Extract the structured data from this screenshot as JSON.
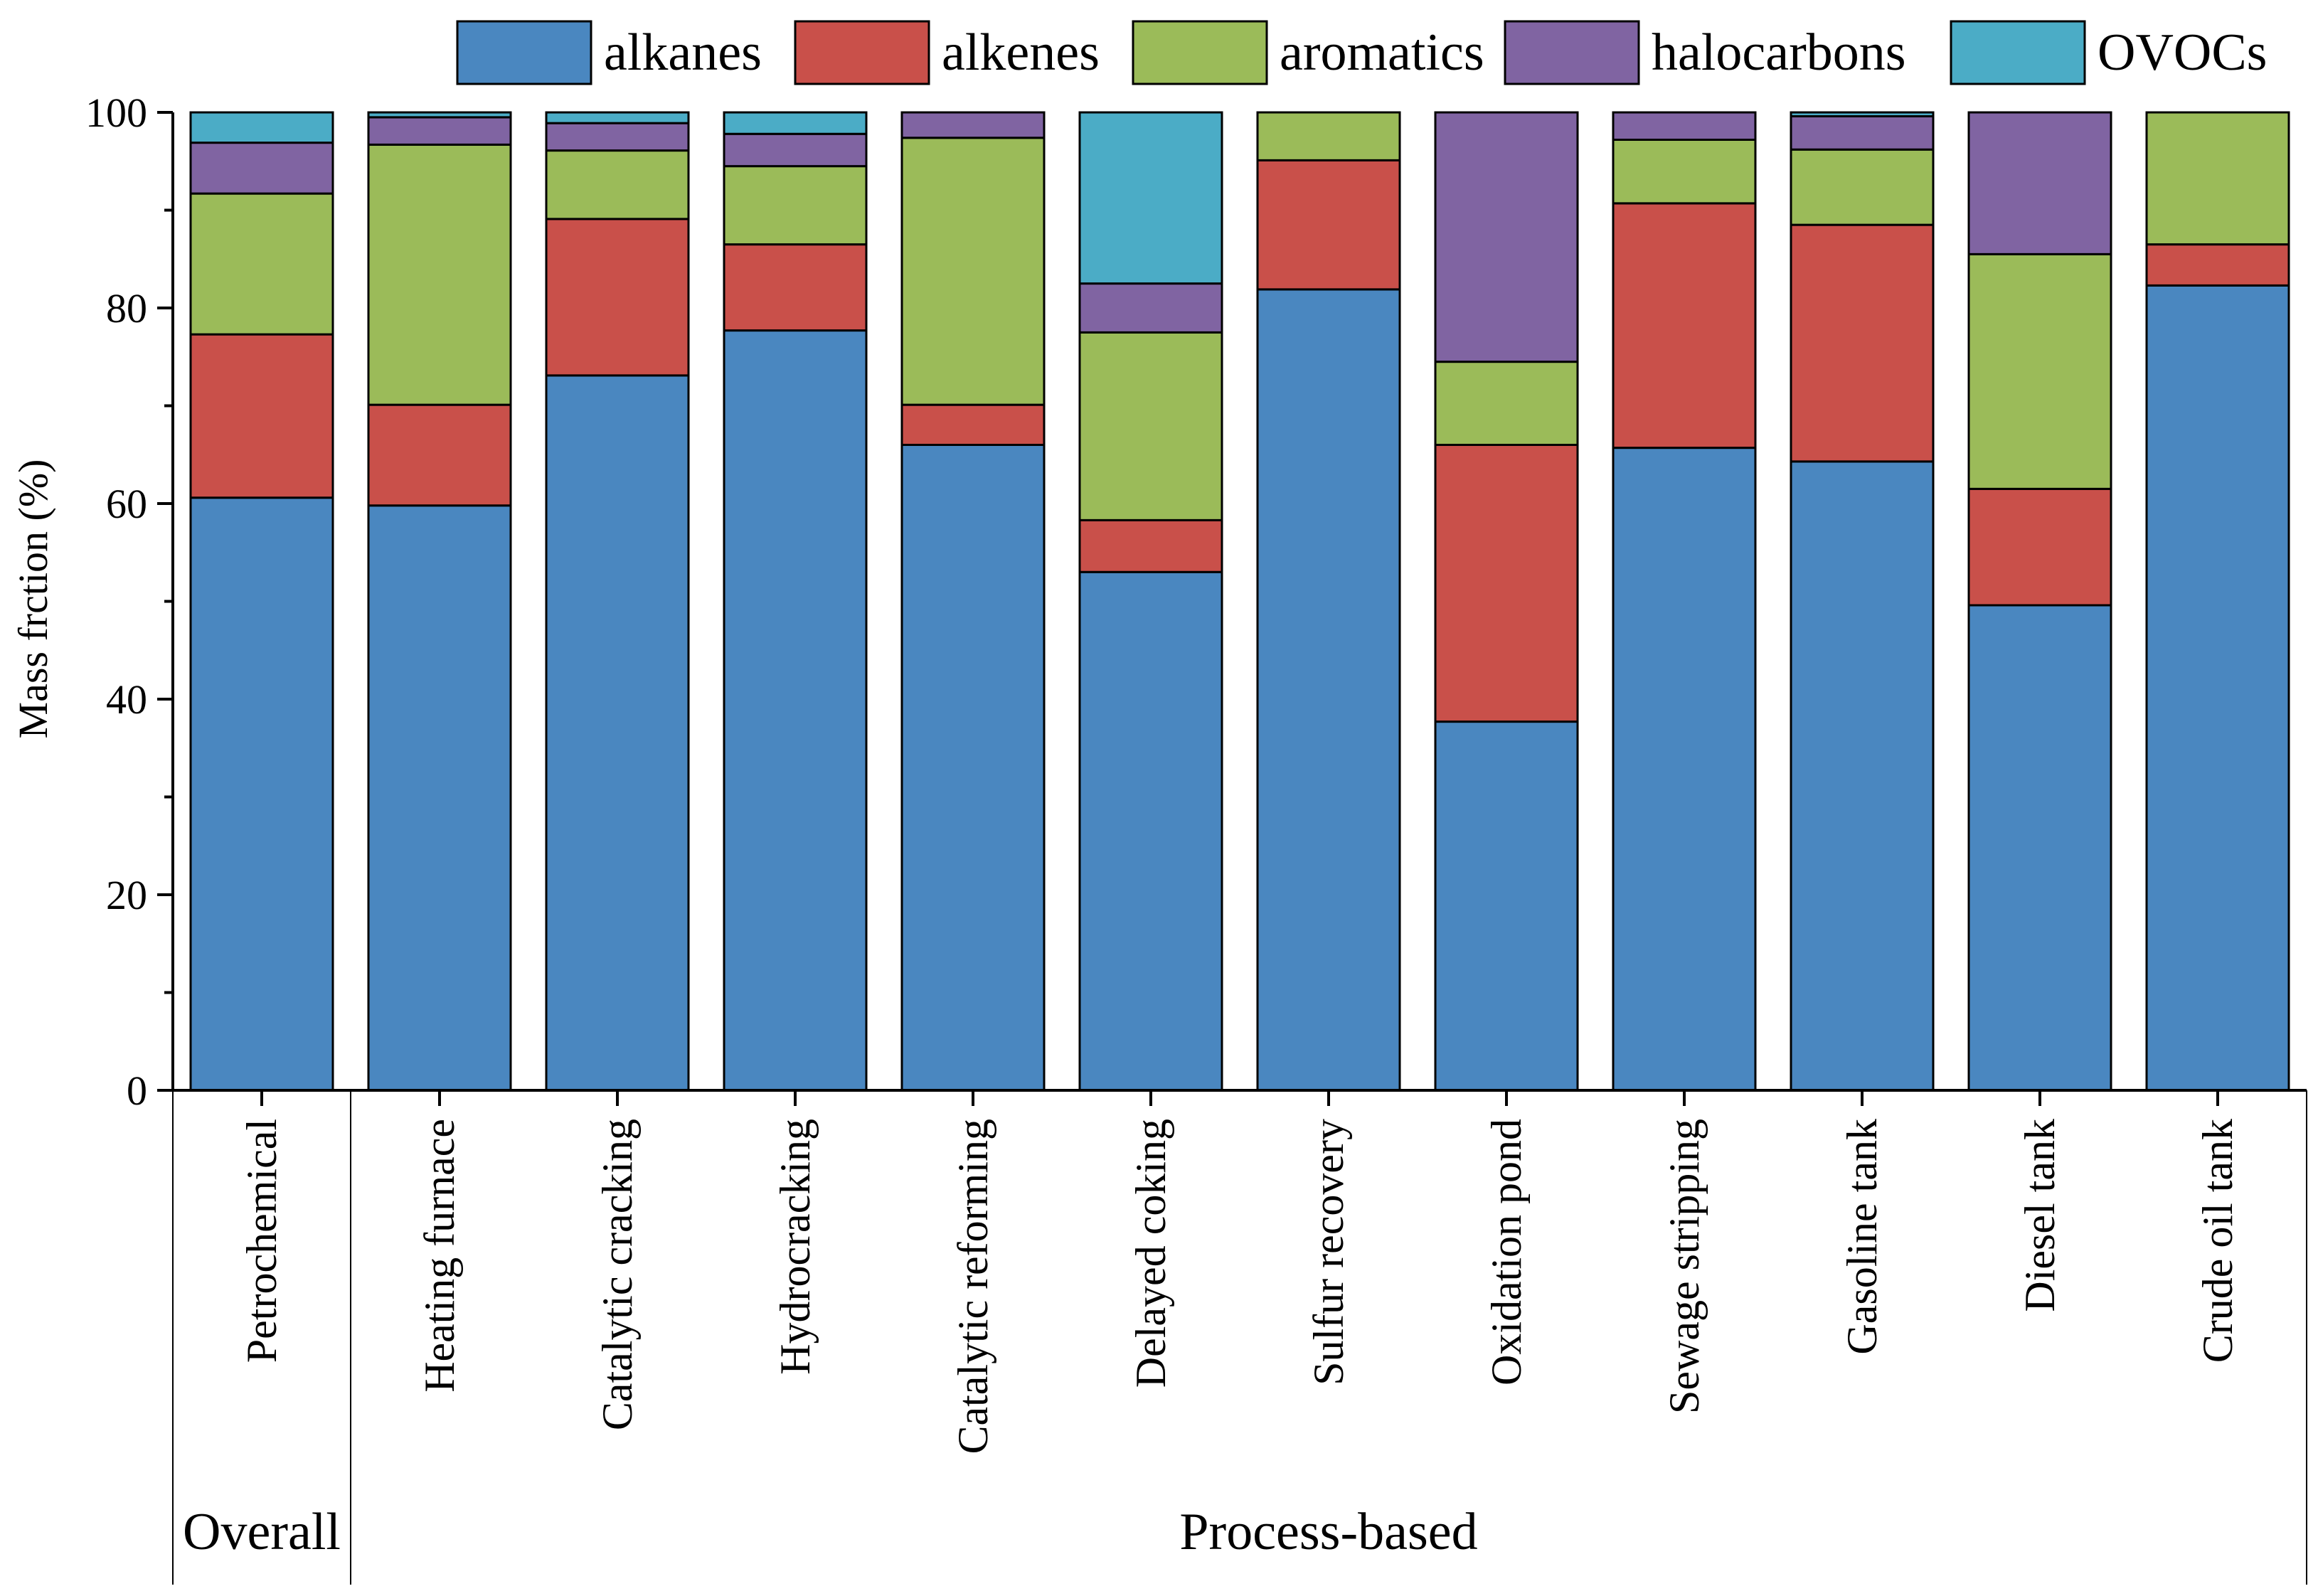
{
  "chart_data": {
    "type": "bar",
    "stacked": true,
    "title": "",
    "ylabel": "Mass frction (%)",
    "xlabel": "",
    "ylim": [
      0,
      100
    ],
    "yticks": [
      0,
      20,
      40,
      60,
      80,
      100
    ],
    "grid": false,
    "legend_position": "top",
    "categories": [
      "Petrochemical",
      "Heating furnace",
      "Catalytic cracking",
      "Hydrocracking",
      "Catalytic reforming",
      "Delayed coking",
      "Sulfur recovery",
      "Oxidation pond",
      "Sewage stripping",
      "Gasoline tank",
      "Diesel tank",
      "Crude oil tank"
    ],
    "groups": [
      {
        "label": "Overall",
        "start": 0,
        "end": 0
      },
      {
        "label": "Process-based",
        "start": 1,
        "end": 11
      }
    ],
    "series": [
      {
        "name": "alkanes",
        "color": "#4a87c0",
        "values": [
          60.6,
          59.8,
          73.1,
          77.7,
          66.0,
          53.0,
          81.9,
          37.7,
          65.7,
          64.3,
          49.6,
          82.3
        ]
      },
      {
        "name": "alkenes",
        "color": "#c9504a",
        "values": [
          16.7,
          10.3,
          16.0,
          8.8,
          4.1,
          5.3,
          13.2,
          28.3,
          25.0,
          24.2,
          11.9,
          4.2
        ]
      },
      {
        "name": "aromatics",
        "color": "#9bbb59",
        "values": [
          14.4,
          26.6,
          7.0,
          8.0,
          27.3,
          19.2,
          4.9,
          8.5,
          6.5,
          7.7,
          24.0,
          13.5
        ]
      },
      {
        "name": "halocarbons",
        "color": "#8064a2",
        "values": [
          5.2,
          2.8,
          2.8,
          3.3,
          2.6,
          5.0,
          0.0,
          25.5,
          2.8,
          3.4,
          14.5,
          0.0
        ]
      },
      {
        "name": "OVOCs",
        "color": "#4bacc6",
        "values": [
          3.1,
          0.5,
          1.1,
          2.2,
          0.0,
          17.5,
          0.0,
          0.0,
          0.0,
          0.4,
          0.0,
          0.0
        ]
      }
    ]
  }
}
